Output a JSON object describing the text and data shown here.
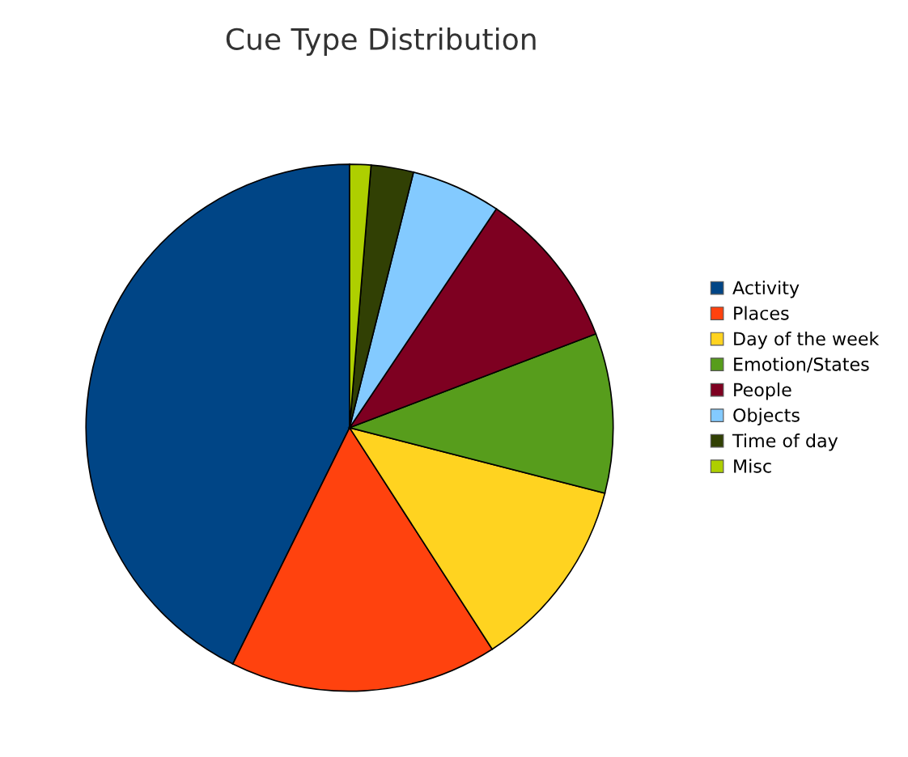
{
  "chart_data": {
    "type": "pie",
    "title": "Cue Type Distribution",
    "categories": [
      "Activity",
      "Places",
      "Day of the week",
      "Emotion/States",
      "People",
      "Objects",
      "Time of day",
      "Misc"
    ],
    "values": [
      42.7,
      16.4,
      11.9,
      9.8,
      9.8,
      5.5,
      2.6,
      1.3
    ],
    "colors": [
      "#004586",
      "#ff420e",
      "#ffd320",
      "#579d1c",
      "#7e0021",
      "#83caff",
      "#314004",
      "#aecf00"
    ],
    "legend": "right"
  }
}
